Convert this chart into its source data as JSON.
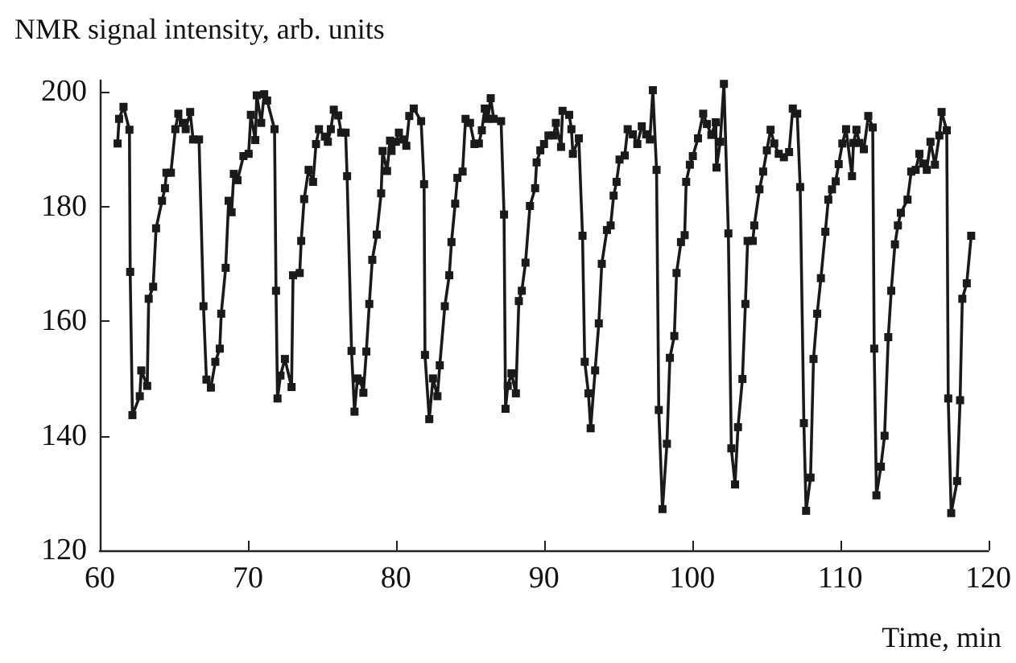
{
  "chart_data": {
    "type": "line",
    "xlabel": "Time, min",
    "ylabel": "NMR signal intensity, arb. units",
    "xlim": [
      60,
      120
    ],
    "xticks": [
      60,
      70,
      80,
      90,
      100,
      110,
      120
    ],
    "ylim": [
      120,
      202
    ],
    "yticks": [
      120,
      140,
      160,
      180,
      200
    ],
    "grid": false,
    "marker": "square",
    "line_style": "solid",
    "series": [
      {
        "color": "#1a1a1a",
        "x": [
          61.2,
          61.3,
          61.6,
          62.0,
          62.05,
          62.2,
          62.7,
          62.8,
          63.2,
          63.3,
          63.6,
          63.8,
          64.2,
          64.4,
          64.5,
          64.8,
          65.1,
          65.3,
          65.6,
          65.8,
          66.1,
          66.3,
          66.7,
          67.0,
          67.2,
          67.5,
          67.8,
          68.1,
          68.2,
          68.5,
          68.7,
          68.9,
          69.05,
          69.3,
          69.7,
          70.05,
          70.2,
          70.5,
          70.6,
          70.9,
          71.1,
          71.3,
          71.8,
          71.9,
          72.0,
          72.2,
          72.5,
          72.95,
          73.05,
          73.5,
          73.6,
          73.8,
          74.1,
          74.4,
          74.6,
          74.8,
          75.2,
          75.4,
          75.6,
          75.8,
          76.1,
          76.3,
          76.6,
          76.7,
          77.0,
          77.2,
          77.4,
          77.6,
          77.8,
          78.0,
          78.2,
          78.4,
          78.7,
          79.0,
          79.1,
          79.4,
          79.6,
          79.7,
          80.0,
          80.2,
          80.5,
          80.7,
          80.9,
          81.2,
          81.7,
          81.9,
          81.96,
          82.25,
          82.5,
          82.8,
          82.96,
          83.3,
          83.6,
          83.75,
          84.0,
          84.15,
          84.5,
          84.7,
          85.0,
          85.3,
          85.6,
          85.8,
          86.0,
          86.2,
          86.4,
          86.6,
          87.1,
          87.3,
          87.4,
          87.55,
          87.8,
          88.1,
          88.3,
          88.5,
          88.75,
          89.05,
          89.4,
          89.5,
          89.75,
          90.0,
          90.3,
          90.65,
          90.8,
          91.15,
          91.25,
          91.7,
          91.85,
          91.95,
          92.35,
          92.6,
          92.75,
          93.0,
          93.15,
          93.45,
          93.7,
          93.9,
          94.25,
          94.5,
          94.7,
          94.9,
          95.1,
          95.45,
          95.65,
          96.0,
          96.3,
          96.6,
          96.9,
          97.15,
          97.35,
          97.6,
          97.75,
          98.0,
          98.3,
          98.5,
          98.8,
          98.95,
          99.25,
          99.5,
          99.6,
          99.85,
          100.05,
          100.4,
          100.75,
          101.0,
          101.3,
          101.6,
          101.65,
          101.9,
          102.15,
          102.45,
          102.65,
          102.9,
          103.1,
          103.4,
          103.6,
          103.75,
          104.1,
          104.2,
          104.55,
          104.8,
          105.05,
          105.3,
          105.55,
          105.85,
          106.2,
          106.55,
          106.8,
          107.1,
          107.3,
          107.55,
          107.7,
          108.0,
          108.2,
          108.45,
          108.7,
          109.0,
          109.2,
          109.45,
          109.7,
          109.9,
          110.15,
          110.4,
          110.8,
          110.9,
          111.1,
          111.3,
          111.6,
          111.9,
          112.2,
          112.3,
          112.45,
          112.75,
          113.0,
          113.25,
          113.45,
          113.7,
          113.9,
          114.1,
          114.55,
          114.8,
          115.1,
          115.35,
          115.6,
          115.85,
          116.1,
          116.4,
          116.7,
          116.85,
          117.2,
          117.3,
          117.5,
          117.9,
          118.1,
          118.25,
          118.55,
          118.85
        ],
        "values": [
          191.0,
          195.3,
          197.4,
          193.4,
          168.6,
          143.6,
          146.9,
          151.4,
          148.7,
          163.9,
          166.0,
          176.2,
          181.0,
          183.2,
          185.9,
          185.9,
          193.5,
          196.2,
          194.6,
          193.5,
          196.5,
          191.7,
          191.7,
          162.6,
          149.8,
          148.4,
          152.9,
          155.2,
          161.3,
          169.3,
          181.0,
          179.0,
          185.7,
          184.6,
          188.8,
          189.2,
          196.0,
          191.6,
          199.4,
          194.6,
          199.6,
          198.5,
          193.5,
          165.3,
          146.5,
          150.5,
          153.4,
          148.5,
          168.0,
          168.4,
          174.0,
          181.3,
          186.4,
          184.3,
          190.9,
          193.5,
          192.2,
          191.3,
          193.5,
          196.9,
          195.9,
          192.9,
          192.9,
          185.3,
          154.8,
          144.2,
          150.0,
          149.6,
          147.5,
          154.7,
          163.0,
          170.7,
          175.1,
          182.3,
          189.7,
          186.2,
          191.5,
          189.7,
          191.3,
          192.9,
          191.7,
          190.6,
          195.8,
          197.1,
          194.9,
          183.9,
          154.1,
          142.9,
          150.0,
          146.9,
          152.3,
          162.6,
          168.0,
          173.8,
          180.5,
          185.0,
          186.1,
          195.3,
          194.6,
          190.9,
          191.0,
          193.3,
          197.1,
          195.3,
          198.9,
          195.3,
          194.9,
          178.6,
          144.7,
          148.7,
          150.9,
          147.4,
          163.5,
          165.3,
          170.2,
          180.1,
          183.2,
          187.7,
          189.8,
          190.9,
          192.4,
          192.4,
          194.6,
          190.4,
          196.7,
          196.0,
          193.5,
          189.2,
          191.9,
          174.9,
          152.9,
          147.4,
          141.3,
          151.4,
          159.6,
          170.0,
          175.9,
          176.7,
          181.9,
          184.3,
          188.2,
          188.9,
          193.5,
          192.6,
          190.9,
          194.0,
          192.6,
          191.7,
          200.3,
          186.4,
          144.5,
          127.2,
          138.6,
          153.6,
          157.4,
          168.4,
          173.8,
          175.0,
          184.3,
          187.3,
          188.8,
          191.9,
          196.2,
          194.4,
          192.5,
          194.7,
          186.8,
          191.3,
          201.4,
          175.3,
          137.8,
          131.5,
          141.5,
          149.9,
          163.0,
          174.0,
          174.0,
          176.7,
          183.0,
          186.1,
          189.8,
          193.4,
          191.0,
          189.2,
          188.6,
          189.5,
          197.1,
          196.2,
          183.4,
          142.2,
          126.9,
          132.7,
          153.4,
          161.3,
          167.5,
          175.6,
          181.2,
          183.0,
          184.4,
          187.4,
          191.0,
          193.5,
          185.3,
          191.1,
          193.4,
          191.1,
          190.0,
          195.8,
          193.8,
          155.2,
          129.6,
          134.6,
          140.0,
          157.2,
          165.3,
          173.4,
          176.7,
          178.9,
          181.2,
          186.1,
          186.4,
          189.2,
          187.5,
          186.4,
          191.3,
          187.3,
          192.4,
          196.5,
          193.3,
          146.5,
          126.5,
          132.1,
          146.2,
          163.9,
          166.6,
          174.9
        ]
      }
    ]
  }
}
